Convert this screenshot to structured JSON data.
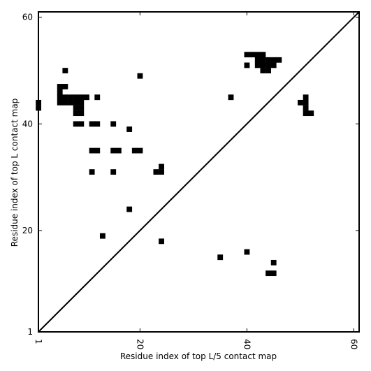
{
  "chart_data": {
    "type": "heatmap",
    "xlabel": "Residue index of top L/5 contact map",
    "ylabel": "Residue index of top L contact map",
    "xlim": [
      1,
      61
    ],
    "ylim": [
      1,
      61
    ],
    "xticks": [
      1,
      20,
      40,
      60
    ],
    "yticks": [
      1,
      20,
      40,
      60
    ],
    "diagonal": [
      [
        1,
        1
      ],
      [
        61,
        61
      ]
    ],
    "cell_color": "#000000",
    "cells_lower": [
      [
        13,
        19
      ],
      [
        18,
        24
      ],
      [
        24,
        18
      ],
      [
        35,
        15
      ],
      [
        40,
        16
      ],
      [
        45,
        14
      ],
      [
        44,
        12
      ],
      [
        45,
        12
      ]
    ],
    "cells_upper": [
      [
        1,
        44
      ],
      [
        1,
        43
      ],
      [
        6,
        50
      ],
      [
        5,
        47
      ],
      [
        6,
        47
      ],
      [
        5,
        46
      ],
      [
        5,
        45
      ],
      [
        6,
        45
      ],
      [
        7,
        45
      ],
      [
        8,
        45
      ],
      [
        9,
        45
      ],
      [
        10,
        45
      ],
      [
        5,
        44
      ],
      [
        6,
        44
      ],
      [
        7,
        44
      ],
      [
        8,
        44
      ],
      [
        9,
        44
      ],
      [
        8,
        43
      ],
      [
        9,
        43
      ],
      [
        8,
        42
      ],
      [
        9,
        42
      ],
      [
        12,
        45
      ],
      [
        20,
        49
      ],
      [
        8,
        40
      ],
      [
        9,
        40
      ],
      [
        11,
        40
      ],
      [
        12,
        40
      ],
      [
        15,
        40
      ],
      [
        18,
        39
      ],
      [
        11,
        35
      ],
      [
        12,
        35
      ],
      [
        15,
        35
      ],
      [
        16,
        35
      ],
      [
        19,
        35
      ],
      [
        20,
        35
      ],
      [
        24,
        32
      ],
      [
        23,
        31
      ],
      [
        24,
        31
      ],
      [
        11,
        31
      ],
      [
        15,
        31
      ],
      [
        37,
        45
      ],
      [
        40,
        53
      ],
      [
        41,
        53
      ],
      [
        42,
        53
      ],
      [
        43,
        53
      ],
      [
        42,
        52
      ],
      [
        43,
        52
      ],
      [
        44,
        52
      ],
      [
        45,
        52
      ],
      [
        46,
        52
      ],
      [
        42,
        51
      ],
      [
        43,
        51
      ],
      [
        44,
        51
      ],
      [
        45,
        51
      ],
      [
        40,
        51
      ],
      [
        43,
        50
      ],
      [
        44,
        50
      ],
      [
        51,
        45
      ],
      [
        50,
        44
      ],
      [
        51,
        44
      ],
      [
        51,
        43
      ],
      [
        51,
        42
      ],
      [
        52,
        42
      ]
    ]
  }
}
